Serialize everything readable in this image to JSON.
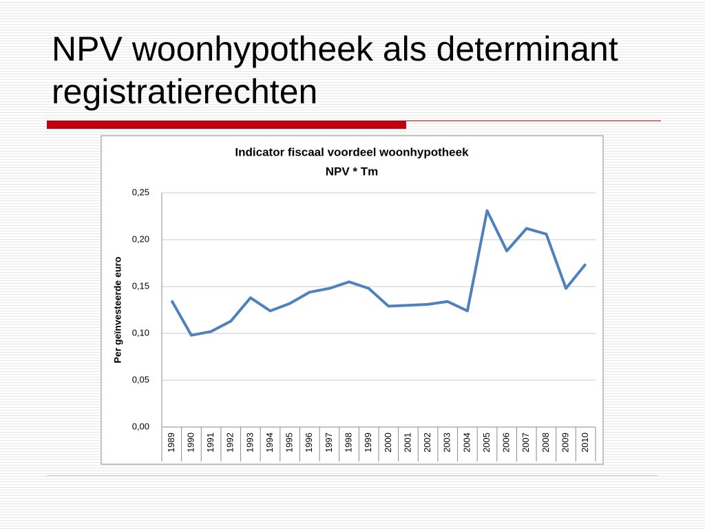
{
  "slide_title": "NPV woonhypotheek als determinant registratierechten",
  "chart_data": {
    "type": "line",
    "title": "Indicator fiscaal voordeel woonhypotheek",
    "subtitle": "NPV * Tm",
    "y_label": "Per geïnvesteerde euro",
    "categories": [
      "1989",
      "1990",
      "1991",
      "1992",
      "1993",
      "1994",
      "1995",
      "1996",
      "1997",
      "1998",
      "1999",
      "2000",
      "2001",
      "2002",
      "2003",
      "2004",
      "2005",
      "2006",
      "2007",
      "2008",
      "2009",
      "2010"
    ],
    "series": [
      {
        "name": "NPV * Tm",
        "color": "#4f81bd",
        "values": [
          0.135,
          0.098,
          0.102,
          0.113,
          0.138,
          0.124,
          0.132,
          0.144,
          0.148,
          0.155,
          0.148,
          0.129,
          0.13,
          0.131,
          0.134,
          0.124,
          0.231,
          0.188,
          0.212,
          0.206,
          0.148,
          0.174
        ]
      }
    ],
    "ylim": [
      0,
      0.25
    ],
    "yticks": [
      {
        "value": 0,
        "label": "0,00"
      },
      {
        "value": 0.05,
        "label": "0,05"
      },
      {
        "value": 0.1,
        "label": "0,10"
      },
      {
        "value": 0.15,
        "label": "0,15"
      },
      {
        "value": 0.2,
        "label": "0,20"
      },
      {
        "value": 0.25,
        "label": "0,25"
      }
    ],
    "grid": true
  }
}
